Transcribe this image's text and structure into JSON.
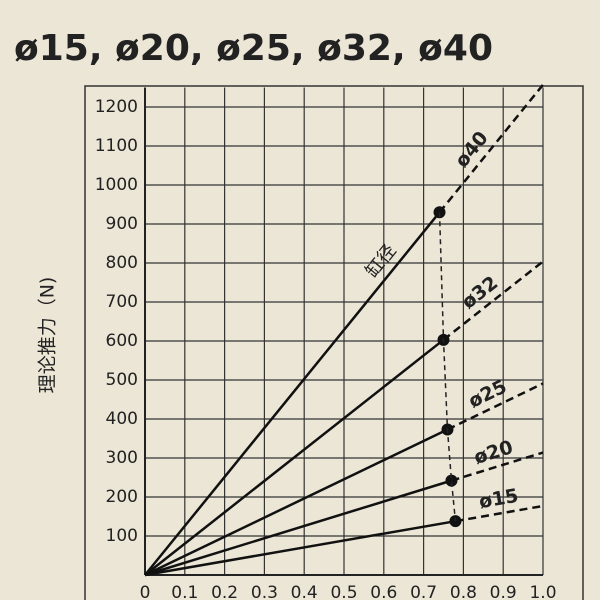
{
  "chart_data": {
    "type": "line",
    "title": "ø15, ø20, ø25, ø32, ø40",
    "y_label": "理论推力（N)",
    "annotation": "缸径",
    "xlim": [
      0,
      1.0
    ],
    "xticks": [
      0,
      0.1,
      0.2,
      0.3,
      0.4,
      0.5,
      0.6,
      0.7,
      0.8,
      0.9,
      {
        "value": 1,
        "label": "1.0"
      }
    ],
    "ylim": [
      0,
      1250
    ],
    "yticks": [
      100,
      200,
      300,
      400,
      500,
      600,
      700,
      800,
      900,
      1000,
      1100,
      1200
    ],
    "grid": true,
    "series": [
      {
        "name": "ø40",
        "color": "#111111",
        "x": [
          0,
          0.74,
          1.0
        ],
        "values": [
          0,
          930,
          1257
        ]
      },
      {
        "name": "ø32",
        "color": "#111111",
        "x": [
          0,
          0.75,
          1.0
        ],
        "values": [
          0,
          603,
          804
        ]
      },
      {
        "name": "ø25",
        "color": "#111111",
        "x": [
          0,
          0.76,
          1.0
        ],
        "values": [
          0,
          373,
          491
        ]
      },
      {
        "name": "ø20",
        "color": "#111111",
        "x": [
          0,
          0.77,
          1.0
        ],
        "values": [
          0,
          242,
          314
        ]
      },
      {
        "name": "ø15",
        "color": "#111111",
        "x": [
          0,
          0.78,
          1.0
        ],
        "values": [
          0,
          138,
          177
        ]
      }
    ]
  }
}
